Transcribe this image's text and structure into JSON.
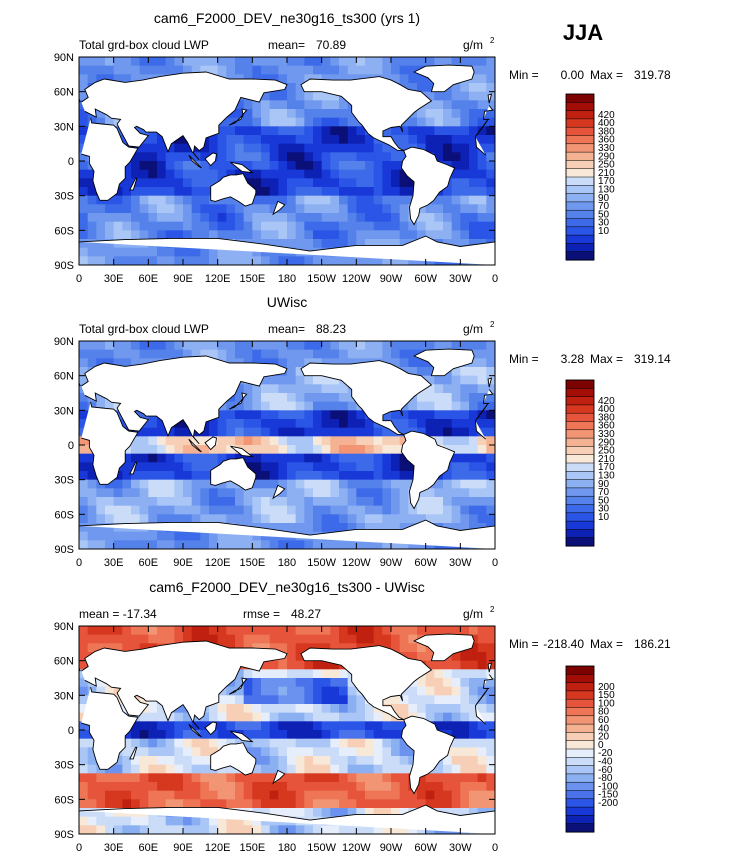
{
  "season": "JJA",
  "colors": {
    "ocean_levels": [
      "#0b0f78",
      "#0d21b4",
      "#1839d8",
      "#2a55e6",
      "#3d6ae8",
      "#5582ea",
      "#6f98ee",
      "#8cb0f2",
      "#aac6f6",
      "#cadcf8",
      "#f7e8d8",
      "#f6cfb6",
      "#f4b293",
      "#f29575",
      "#ee7656",
      "#e6553b",
      "#d6371f",
      "#c0200f",
      "#a20d06",
      "#7d0303"
    ],
    "diff_levels": [
      "#0b0f78",
      "#0d21b4",
      "#1839d8",
      "#2a55e6",
      "#4a72ea",
      "#6a92ee",
      "#8ab0f2",
      "#aac6f6",
      "#cadcf8",
      "#e6eefb",
      "#f7e8d8",
      "#f6cfb6",
      "#f4b293",
      "#f29575",
      "#ee7656",
      "#e6553b",
      "#d6371f",
      "#c0200f",
      "#a20d06",
      "#7d0303"
    ],
    "land": "#ffffff"
  },
  "chart_data": [
    {
      "type": "heatmap",
      "title": "cam6_F2000_DEV_ne30g16_ts300 (yrs 1)",
      "left_label": "Total grd-box cloud LWP",
      "mean_label": "mean=",
      "mean_value": "70.89",
      "units": "g/m",
      "units_sup": "2",
      "min_label": "Min =",
      "min_value": "0.00",
      "max_label": "Max =",
      "max_value": "319.78",
      "legend_labels": [
        "420",
        "400",
        "380",
        "360",
        "330",
        "290",
        "250",
        "210",
        "170",
        "130",
        "90",
        "70",
        "50",
        "30",
        "10"
      ],
      "palette": "absolute",
      "field_mean": 70.89
    },
    {
      "type": "heatmap",
      "title": "UWisc",
      "left_label": "Total grd-box cloud LWP",
      "mean_label": "mean=",
      "mean_value": "88.23",
      "units": "g/m",
      "units_sup": "2",
      "min_label": "Min =",
      "min_value": "3.28",
      "max_label": "Max =",
      "max_value": "319.14",
      "legend_labels": [
        "420",
        "400",
        "380",
        "360",
        "330",
        "290",
        "250",
        "210",
        "170",
        "130",
        "90",
        "70",
        "50",
        "30",
        "10"
      ],
      "palette": "absolute",
      "field_mean": 88.23
    },
    {
      "type": "heatmap",
      "title": "cam6_F2000_DEV_ne30g16_ts300 - UWisc",
      "left_label": "mean = -17.34",
      "mean_label": "rmse =",
      "mean_value": "48.27",
      "units": "g/m",
      "units_sup": "2",
      "min_label": "Min =",
      "min_value": "-218.40",
      "max_label": "Max =",
      "max_value": "186.21",
      "legend_labels": [
        "200",
        "150",
        "100",
        "80",
        "60",
        "40",
        "20",
        "0",
        "-20",
        "-40",
        "-60",
        "-80",
        "-100",
        "-150",
        "-200"
      ],
      "palette": "difference",
      "field_mean": -17.34
    }
  ],
  "axes": {
    "y_ticks": [
      "90N",
      "60N",
      "30N",
      "0",
      "30S",
      "60S",
      "90S"
    ],
    "x_ticks": [
      "0",
      "30E",
      "60E",
      "90E",
      "120E",
      "150E",
      "180",
      "150W",
      "120W",
      "90W",
      "60W",
      "30W",
      "0"
    ],
    "lat_range": [
      -90,
      90
    ],
    "lon_range": [
      0,
      360
    ]
  }
}
